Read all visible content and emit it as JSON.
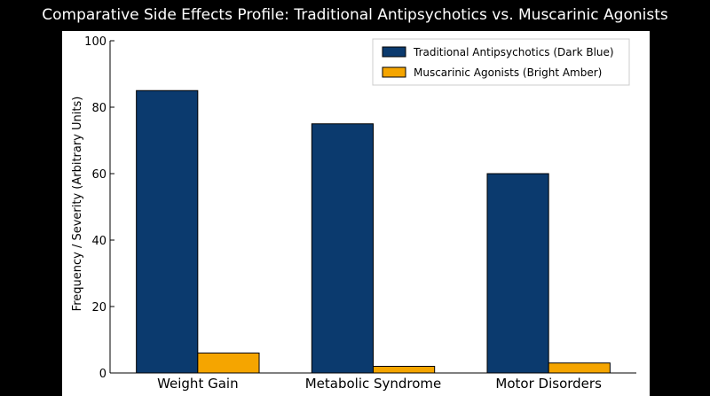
{
  "chart_data": {
    "type": "bar",
    "title": "Comparative Side Effects Profile: Traditional Antipsychotics vs. Muscarinic Agonists",
    "xlabel": "",
    "ylabel": "Frequency / Severity (Arbitrary Units)",
    "categories": [
      "Weight Gain",
      "Metabolic Syndrome",
      "Motor Disorders"
    ],
    "series": [
      {
        "name": "Traditional Antipsychotics (Dark Blue)",
        "values": [
          85,
          75,
          60
        ],
        "color": "#0b3a6e"
      },
      {
        "name": "Muscarinic Agonists (Bright Amber)",
        "values": [
          6,
          2,
          3
        ],
        "color": "#f5a500"
      }
    ],
    "ylim": [
      0,
      100
    ],
    "yticks": [
      "0",
      "20",
      "40",
      "60",
      "80",
      "100"
    ],
    "grid": false,
    "legend_position": "top-right",
    "colors": {
      "background": "#000000",
      "plot_background": "#ffffff",
      "title": "#ffffff"
    }
  }
}
